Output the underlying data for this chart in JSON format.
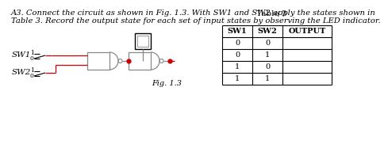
{
  "title_line1": "A3. Connect the circuit as shown in Fig. 1.3. With SW1 and SW2 apply the states shown in",
  "title_line2": "Table 3. Record the output state for each set of input states by observing the LED indicator.",
  "fig_label": "Fig. 1.3",
  "table_title": "Table 3",
  "table_headers": [
    "SW1",
    "SW2",
    "OUTPUT"
  ],
  "table_rows": [
    [
      "0",
      "0",
      ""
    ],
    [
      "0",
      "1",
      ""
    ],
    [
      "1",
      "0",
      ""
    ],
    [
      "1",
      "1",
      ""
    ]
  ],
  "sw1_label": "SW1",
  "sw2_label": "SW2",
  "bg_color": "#ffffff",
  "text_color": "#000000",
  "wire_red": "#cc0000",
  "wire_gray": "#888888",
  "title_fontsize": 7.2,
  "body_fontsize": 7.0,
  "label_fontsize": 7.5,
  "small_fontsize": 5.5
}
